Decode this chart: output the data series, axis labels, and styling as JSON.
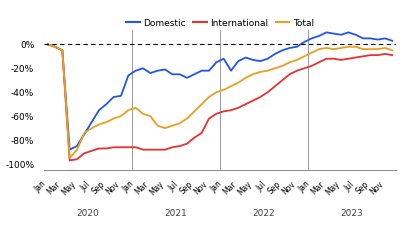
{
  "legend": [
    "Domestic",
    "International",
    "Total"
  ],
  "line_colors": [
    "#2255e8",
    "#e83030",
    "#e8a020"
  ],
  "ylim": [
    -105,
    12
  ],
  "yticks": [
    0,
    -20,
    -40,
    -60,
    -80,
    -100
  ],
  "ytick_labels": [
    "0%",
    "-20%",
    "-40%",
    "-60%",
    "-80%",
    "-100%"
  ],
  "background_color": "#ffffff",
  "domestic": [
    0,
    -2,
    -5,
    -88,
    -85,
    -75,
    -65,
    -55,
    -50,
    -44,
    -43,
    -26,
    -22,
    -20,
    -24,
    -22,
    -21,
    -25,
    -25,
    -28,
    -25,
    -22,
    -22,
    -15,
    -12,
    -22,
    -14,
    -11,
    -13,
    -14,
    -12,
    -8,
    -5,
    -3,
    -2,
    2,
    5,
    7,
    10,
    9,
    8,
    10,
    8,
    5,
    5,
    4,
    5,
    3
  ],
  "international": [
    0,
    -2,
    -5,
    -97,
    -96,
    -91,
    -89,
    -87,
    -87,
    -86,
    -86,
    -86,
    -86,
    -88,
    -88,
    -88,
    -88,
    -86,
    -85,
    -83,
    -78,
    -74,
    -62,
    -58,
    -56,
    -55,
    -53,
    -50,
    -47,
    -44,
    -40,
    -35,
    -30,
    -25,
    -22,
    -20,
    -18,
    -15,
    -12,
    -12,
    -13,
    -12,
    -11,
    -10,
    -9,
    -9,
    -8,
    -9
  ],
  "total": [
    0,
    -2,
    -5,
    -95,
    -88,
    -74,
    -70,
    -67,
    -65,
    -62,
    -60,
    -55,
    -53,
    -58,
    -60,
    -68,
    -70,
    -68,
    -66,
    -62,
    -56,
    -50,
    -44,
    -40,
    -38,
    -35,
    -32,
    -28,
    -25,
    -23,
    -22,
    -20,
    -18,
    -15,
    -13,
    -10,
    -7,
    -4,
    -3,
    -4,
    -3,
    -2,
    -2,
    -4,
    -4,
    -4,
    -3,
    -5
  ],
  "n_points": 48,
  "year_labels": [
    "2020",
    "2021",
    "2022",
    "2023"
  ],
  "month_tick_labels": [
    "Jan",
    "Mar",
    "May",
    "Jul",
    "Sep",
    "Nov"
  ]
}
